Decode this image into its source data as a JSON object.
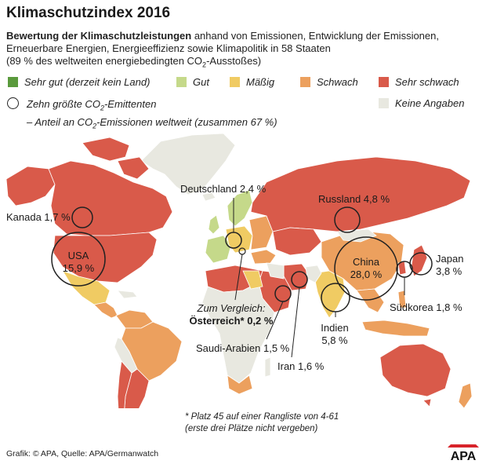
{
  "title": "Klimaschutzindex 2016",
  "subtitle": {
    "bold": "Bewertung der Klimaschutzleistungen",
    "rest": " anhand von Emissionen, Entwicklung der Emissionen, Erneuerbare Energien, Energieeffizienz sowie Klimapolitik in 58 Staaten",
    "line3_a": "(89 % des weltweiten energiebedingten CO",
    "line3_sub": "2",
    "line3_b": "-Ausstoßes)"
  },
  "legend": {
    "sehr_gut": "Sehr gut (derzeit kein Land)",
    "gut": "Gut",
    "maessig": "Mäßig",
    "schwach": "Schwach",
    "sehr_schwach": "Sehr schwach",
    "keine_angaben": "Keine Angaben",
    "circle_line1_a": "Zehn größte CO",
    "circle_line1_sub": "2",
    "circle_line1_b": "-Emittenten",
    "circle_line2_a": "– Anteil an CO",
    "circle_line2_sub": "2",
    "circle_line2_b": "-Emissionen weltweit (zusammen 67 %)"
  },
  "colors": {
    "sehr_gut": "#5a9a3c",
    "gut": "#c5d98a",
    "maessig": "#f0cb63",
    "schwach": "#eca05e",
    "sehr_schwach": "#d95a4a",
    "keine_angaben": "#e8e8e0",
    "ocean": "#ffffff"
  },
  "labels": {
    "kanada": "Kanada 1,7 %",
    "usa_name": "USA",
    "usa_value": "15,9 %",
    "deutschland": "Deutschland 2,4 %",
    "russland": "Russland 4,8 %",
    "china_name": "China",
    "china_value": "28,0 %",
    "japan_name": "Japan",
    "japan_value": "3,8 %",
    "suedkorea": "Südkorea 1,8 %",
    "indien_name": "Indien",
    "indien_value": "5,8 %",
    "iran": "Iran 1,6 %",
    "saudi": "Saudi-Arabien 1,5 %",
    "vergleich": "Zum Vergleich:",
    "oesterreich": "Österreich* 0,2 %"
  },
  "footnote": {
    "line1": "* Platz 45 auf einer Rangliste von 4-61",
    "line2": "(erste drei Plätze nicht vergeben)"
  },
  "credit": "Grafik: © APA, Quelle: APA/Germanwatch",
  "logo": "APA"
}
